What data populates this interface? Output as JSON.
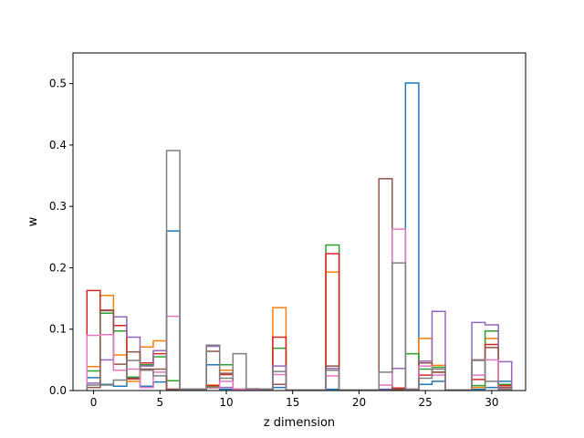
{
  "chart_data": {
    "type": "step",
    "title": "",
    "xlabel": "z dimension",
    "ylabel": "w",
    "xlim": [
      -1.55,
      32.55
    ],
    "ylim": [
      0,
      0.55
    ],
    "xticks": [
      0,
      5,
      10,
      15,
      20,
      25,
      30
    ],
    "yticks": [
      0.0,
      0.1,
      0.2,
      0.3,
      0.4,
      0.5
    ],
    "xticklabels": [
      "0",
      "5",
      "10",
      "15",
      "20",
      "25",
      "30"
    ],
    "yticklabels": [
      "0.0",
      "0.1",
      "0.2",
      "0.3",
      "0.4",
      "0.5"
    ],
    "bin_width": 1,
    "x_start": 0,
    "series": [
      {
        "color": "#1f77b4",
        "values": [
          0.021,
          0.01,
          0.007,
          0.02,
          0.007,
          0.014,
          0.26,
          0.002,
          0.002,
          0.042,
          0.002,
          0.002,
          0.002,
          0.002,
          0.005,
          0.001,
          0.001,
          0.001,
          0.002,
          0.001,
          0.001,
          0.001,
          0.002,
          0.002,
          0.501,
          0.01,
          0.015,
          0.001,
          0.001,
          0.002,
          0.005,
          0.015
        ]
      },
      {
        "color": "#ff7f0e",
        "values": [
          0.039,
          0.155,
          0.058,
          0.015,
          0.071,
          0.081,
          0.002,
          0.002,
          0.002,
          0.009,
          0.033,
          0.002,
          0.002,
          0.002,
          0.135,
          0.001,
          0.001,
          0.001,
          0.193,
          0.001,
          0.001,
          0.001,
          0.001,
          0.002,
          0.002,
          0.085,
          0.041,
          0.001,
          0.001,
          0.005,
          0.085,
          0.005
        ]
      },
      {
        "color": "#2ca02c",
        "values": [
          0.032,
          0.126,
          0.097,
          0.022,
          0.042,
          0.055,
          0.016,
          0.002,
          0.002,
          0.006,
          0.042,
          0.002,
          0.002,
          0.002,
          0.069,
          0.001,
          0.001,
          0.001,
          0.237,
          0.001,
          0.001,
          0.001,
          0.001,
          0.002,
          0.06,
          0.035,
          0.038,
          0.001,
          0.001,
          0.008,
          0.097,
          0.01
        ]
      },
      {
        "color": "#d62728",
        "values": [
          0.163,
          0.131,
          0.106,
          0.019,
          0.045,
          0.06,
          0.002,
          0.002,
          0.002,
          0.008,
          0.026,
          0.002,
          0.002,
          0.002,
          0.087,
          0.001,
          0.001,
          0.001,
          0.223,
          0.001,
          0.001,
          0.001,
          0.001,
          0.004,
          0.002,
          0.025,
          0.03,
          0.001,
          0.001,
          0.018,
          0.075,
          0.008
        ]
      },
      {
        "color": "#9467bd",
        "values": [
          0.012,
          0.05,
          0.12,
          0.087,
          0.04,
          0.065,
          0.002,
          0.002,
          0.002,
          0.072,
          0.005,
          0.002,
          0.002,
          0.002,
          0.04,
          0.001,
          0.001,
          0.001,
          0.036,
          0.001,
          0.001,
          0.001,
          0.001,
          0.036,
          0.002,
          0.048,
          0.129,
          0.001,
          0.001,
          0.111,
          0.107,
          0.047
        ]
      },
      {
        "color": "#8c564b",
        "values": [
          0.005,
          0.13,
          0.043,
          0.063,
          0.035,
          0.035,
          0.002,
          0.002,
          0.002,
          0.064,
          0.028,
          0.002,
          0.002,
          0.002,
          0.01,
          0.001,
          0.001,
          0.001,
          0.04,
          0.001,
          0.001,
          0.001,
          0.345,
          0.002,
          0.002,
          0.045,
          0.03,
          0.001,
          0.001,
          0.05,
          0.07,
          0.005
        ]
      },
      {
        "color": "#e377c2",
        "values": [
          0.09,
          0.091,
          0.033,
          0.035,
          0.005,
          0.03,
          0.121,
          0.002,
          0.002,
          0.004,
          0.015,
          0.002,
          0.002,
          0.002,
          0.026,
          0.001,
          0.001,
          0.001,
          0.024,
          0.001,
          0.001,
          0.001,
          0.009,
          0.263,
          0.002,
          0.04,
          0.025,
          0.001,
          0.001,
          0.025,
          0.05,
          0.003
        ]
      },
      {
        "color": "#7f7f7f",
        "values": [
          0.009,
          0.009,
          0.017,
          0.049,
          0.033,
          0.024,
          0.391,
          0.002,
          0.002,
          0.074,
          0.02,
          0.06,
          0.003,
          0.002,
          0.031,
          0.001,
          0.001,
          0.001,
          0.033,
          0.001,
          0.001,
          0.001,
          0.03,
          0.208,
          0.002,
          0.02,
          0.035,
          0.001,
          0.001,
          0.049,
          0.015,
          0.002
        ]
      }
    ]
  }
}
